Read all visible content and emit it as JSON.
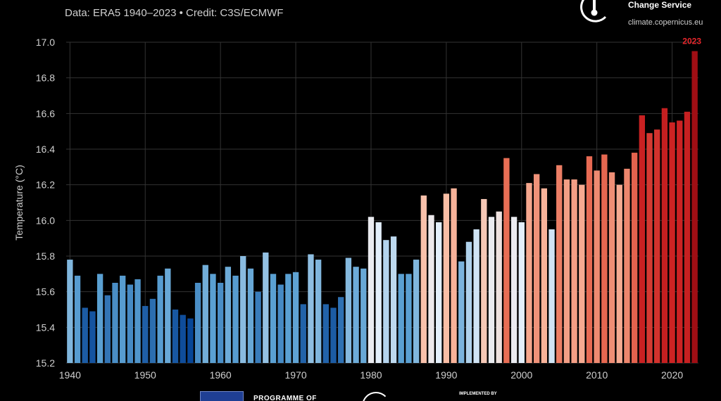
{
  "header": {
    "subtitle": "Data: ERA5 1940–2023 • Credit: C3S/ECMWF",
    "brand_name": "Change Service",
    "brand_url": "climate.copernicus.eu"
  },
  "footer": {
    "program_text": "PROGRAMME OF",
    "implemented_text": "IMPLEMENTED BY"
  },
  "colors": {
    "background": "#000000",
    "grid": "#333333",
    "axis_text": "#cfcfcf",
    "highlight_label": "#e8262b"
  },
  "chart_data": {
    "type": "bar",
    "title": "",
    "xlabel": "",
    "ylabel": "Temperature (°C)",
    "ylim": [
      15.2,
      17.0
    ],
    "xlim": [
      1939.5,
      2023.5
    ],
    "grid": true,
    "yticks": [
      "15.2",
      "15.4",
      "15.6",
      "15.8",
      "16.0",
      "16.2",
      "16.4",
      "16.6",
      "16.8",
      "17.0"
    ],
    "xticks": [
      "1940",
      "1950",
      "1960",
      "1970",
      "1980",
      "1990",
      "2000",
      "2010",
      "2020"
    ],
    "highlight_label": "2023",
    "x": [
      1940,
      1941,
      1942,
      1943,
      1944,
      1945,
      1946,
      1947,
      1948,
      1949,
      1950,
      1951,
      1952,
      1953,
      1954,
      1955,
      1956,
      1957,
      1958,
      1959,
      1960,
      1961,
      1962,
      1963,
      1964,
      1965,
      1966,
      1967,
      1968,
      1969,
      1970,
      1971,
      1972,
      1973,
      1974,
      1975,
      1976,
      1977,
      1978,
      1979,
      1980,
      1981,
      1982,
      1983,
      1984,
      1985,
      1986,
      1987,
      1988,
      1989,
      1990,
      1991,
      1992,
      1993,
      1994,
      1995,
      1996,
      1997,
      1998,
      1999,
      2000,
      2001,
      2002,
      2003,
      2004,
      2005,
      2006,
      2007,
      2008,
      2009,
      2010,
      2011,
      2012,
      2013,
      2014,
      2015,
      2016,
      2017,
      2018,
      2019,
      2020,
      2021,
      2022,
      2023
    ],
    "values": [
      15.78,
      15.69,
      15.51,
      15.49,
      15.7,
      15.58,
      15.65,
      15.69,
      15.64,
      15.67,
      15.52,
      15.56,
      15.69,
      15.73,
      15.5,
      15.47,
      15.45,
      15.65,
      15.75,
      15.7,
      15.65,
      15.74,
      15.69,
      15.8,
      15.73,
      15.6,
      15.82,
      15.7,
      15.64,
      15.7,
      15.71,
      15.53,
      15.81,
      15.78,
      15.53,
      15.51,
      15.57,
      15.79,
      15.74,
      15.73,
      16.02,
      15.99,
      15.89,
      15.91,
      15.7,
      15.7,
      15.78,
      16.14,
      16.03,
      15.99,
      16.15,
      16.18,
      15.77,
      15.88,
      15.95,
      16.12,
      16.02,
      16.05,
      16.35,
      16.02,
      15.99,
      16.21,
      16.26,
      16.18,
      15.95,
      16.31,
      16.23,
      16.23,
      16.2,
      16.36,
      16.28,
      16.37,
      16.27,
      16.2,
      16.29,
      16.38,
      16.59,
      16.49,
      16.51,
      16.63,
      16.55,
      16.56,
      16.61,
      16.95
    ]
  }
}
